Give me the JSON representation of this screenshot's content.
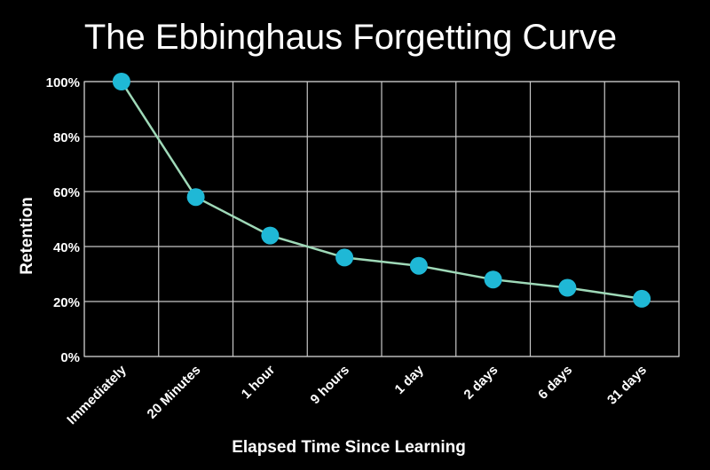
{
  "chart_data": {
    "type": "line",
    "title": "The Ebbinghaus Forgetting Curve",
    "xlabel": "Elapsed Time Since Learning",
    "ylabel": "Retention",
    "categories": [
      "Immediately",
      "20 Minutes",
      "1 hour",
      "9 hours",
      "1 day",
      "2 days",
      "6 days",
      "31 days"
    ],
    "series": [
      {
        "values": [
          100,
          58,
          44,
          36,
          33,
          28,
          25,
          21
        ]
      }
    ],
    "ylim": [
      0,
      100
    ],
    "y_ticks": [
      0,
      20,
      40,
      60,
      80,
      100
    ],
    "y_tick_labels": [
      "0%",
      "20%",
      "40%",
      "60%",
      "80%",
      "100%"
    ],
    "grid": true,
    "legend": "none",
    "colors": {
      "background": "#000000",
      "line": "#9fd9b8",
      "marker": "#1fb8d6",
      "grid": "#c8c8c8",
      "text": "#ffffff"
    }
  }
}
